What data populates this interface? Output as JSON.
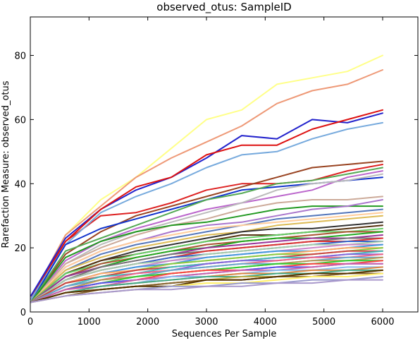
{
  "chart_data": {
    "type": "line",
    "title": "observed_otus: SampleID",
    "xlabel": "Sequences Per Sample",
    "ylabel": "Rarefaction Measure: observed_otus",
    "xlim": [
      0,
      6600
    ],
    "ylim": [
      0,
      92
    ],
    "xticks": [
      0,
      1000,
      2000,
      3000,
      4000,
      5000,
      6000
    ],
    "yticks": [
      0,
      20,
      40,
      60,
      80
    ],
    "grid": false,
    "legend": "none",
    "x": [
      10,
      600,
      1200,
      1800,
      2400,
      3000,
      3600,
      4200,
      4800,
      5400,
      6000
    ],
    "series": [
      {
        "color": "#ffff88",
        "values": [
          4,
          24,
          35,
          42,
          51,
          60,
          63,
          71,
          73,
          75,
          80
        ]
      },
      {
        "color": "#ee9977",
        "values": [
          4,
          24,
          33,
          42,
          48,
          53,
          58,
          65,
          69,
          71,
          75.5
        ]
      },
      {
        "color": "#dd2222",
        "values": [
          5,
          22,
          30,
          31,
          34,
          38,
          40,
          40,
          41,
          44,
          46
        ]
      },
      {
        "color": "#2222cc",
        "values": [
          5,
          23,
          32,
          38,
          42,
          48,
          55,
          54,
          60,
          59,
          62
        ]
      },
      {
        "color": "#dd1111",
        "values": [
          4,
          22,
          32,
          39,
          42,
          49,
          52,
          52,
          57,
          60,
          63
        ]
      },
      {
        "color": "#77aadd",
        "values": [
          4,
          21,
          31,
          36,
          40,
          45,
          49,
          50,
          54,
          57,
          59
        ]
      },
      {
        "color": "#994422",
        "values": [
          3,
          18,
          25,
          30,
          33,
          36,
          39,
          42,
          45,
          46,
          47
        ]
      },
      {
        "color": "#1133cc",
        "values": [
          3,
          21,
          26,
          29,
          32,
          35,
          38,
          39,
          40,
          41,
          42
        ]
      },
      {
        "color": "#55aa55",
        "values": [
          3,
          19,
          23,
          27,
          31,
          35,
          37,
          40,
          41,
          43,
          45
        ]
      },
      {
        "color": "#bb66cc",
        "values": [
          3,
          16,
          22,
          26,
          29,
          32,
          34,
          36,
          38,
          42,
          44
        ]
      },
      {
        "color": "#bbbbbb",
        "values": [
          3,
          15,
          21,
          25,
          28,
          31,
          34,
          38,
          40,
          41,
          43
        ]
      },
      {
        "color": "#ccaa99",
        "values": [
          3,
          15,
          20,
          24,
          27,
          29,
          32,
          34,
          35,
          35,
          36
        ]
      },
      {
        "color": "#229922",
        "values": [
          3,
          17,
          22,
          25,
          27,
          28,
          30,
          32,
          33,
          33,
          33
        ]
      },
      {
        "color": "#aa77cc",
        "values": [
          3,
          14,
          19,
          22,
          25,
          27,
          28,
          30,
          32,
          33,
          35
        ]
      },
      {
        "color": "#5577bb",
        "values": [
          3,
          13,
          18,
          21,
          23,
          25,
          27,
          29,
          30,
          31,
          32
        ]
      },
      {
        "color": "#ffcc99",
        "values": [
          3,
          14,
          19,
          22,
          24,
          26,
          27,
          28,
          29,
          30,
          31
        ]
      },
      {
        "color": "#ddbb55",
        "values": [
          3,
          13,
          17,
          20,
          22,
          24,
          25,
          27,
          28,
          29,
          30
        ]
      },
      {
        "color": "#333333",
        "values": [
          3,
          12,
          16,
          19,
          21,
          23,
          25,
          26,
          26,
          27,
          28
        ]
      },
      {
        "color": "#553311",
        "values": [
          3,
          12,
          16,
          18,
          20,
          22,
          24,
          24,
          25,
          26,
          27
        ]
      },
      {
        "color": "#66cc66",
        "values": [
          3,
          12,
          15,
          18,
          20,
          22,
          23,
          24,
          25,
          25,
          26
        ]
      },
      {
        "color": "#aa5533",
        "values": [
          3,
          11,
          15,
          17,
          19,
          21,
          22,
          23,
          24,
          25,
          25
        ]
      },
      {
        "color": "#22aa22",
        "values": [
          3,
          11,
          14,
          17,
          19,
          20,
          22,
          23,
          23,
          24,
          25
        ]
      },
      {
        "color": "#993399",
        "values": [
          3,
          11,
          14,
          16,
          18,
          20,
          21,
          22,
          23,
          23,
          24
        ]
      },
      {
        "color": "#777777",
        "values": [
          3,
          10,
          14,
          16,
          18,
          19,
          20,
          21,
          22,
          23,
          23
        ]
      },
      {
        "color": "#dd3333",
        "values": [
          3,
          10,
          13,
          15,
          17,
          19,
          20,
          21,
          22,
          22,
          23
        ]
      },
      {
        "color": "#3366cc",
        "values": [
          3,
          10,
          13,
          15,
          17,
          18,
          19,
          20,
          21,
          22,
          22
        ]
      },
      {
        "color": "#aaccaa",
        "values": [
          3,
          10,
          13,
          15,
          16,
          18,
          19,
          20,
          21,
          21,
          22
        ]
      },
      {
        "color": "#cc88cc",
        "values": [
          3,
          9,
          12,
          14,
          16,
          17,
          18,
          19,
          20,
          21,
          21
        ]
      },
      {
        "color": "#4499dd",
        "values": [
          3,
          9,
          12,
          14,
          15,
          17,
          18,
          19,
          19,
          20,
          21
        ]
      },
      {
        "color": "#ffaa66",
        "values": [
          3,
          9,
          12,
          13,
          15,
          16,
          17,
          18,
          19,
          20,
          20
        ]
      },
      {
        "color": "#88cc44",
        "values": [
          3,
          9,
          11,
          13,
          15,
          16,
          17,
          18,
          18,
          19,
          20
        ]
      },
      {
        "color": "#cc4444",
        "values": [
          3,
          9,
          11,
          13,
          14,
          15,
          16,
          17,
          18,
          19,
          19
        ]
      },
      {
        "color": "#44bbbb",
        "values": [
          3,
          8,
          11,
          12,
          14,
          15,
          16,
          17,
          17,
          18,
          19
        ]
      },
      {
        "color": "#8866dd",
        "values": [
          3,
          8,
          10,
          12,
          13,
          15,
          16,
          16,
          17,
          18,
          18
        ]
      },
      {
        "color": "#ee6688",
        "values": [
          3,
          8,
          10,
          12,
          13,
          14,
          15,
          16,
          17,
          17,
          18
        ]
      },
      {
        "color": "#66aacc",
        "values": [
          3,
          8,
          10,
          11,
          13,
          14,
          15,
          15,
          16,
          17,
          17
        ]
      },
      {
        "color": "#bb9955",
        "values": [
          3,
          7,
          10,
          11,
          12,
          13,
          14,
          15,
          16,
          16,
          17
        ]
      },
      {
        "color": "#33cc33",
        "values": [
          3,
          7,
          9,
          11,
          12,
          13,
          14,
          15,
          15,
          16,
          16
        ]
      },
      {
        "color": "#ff4444",
        "values": [
          3,
          7,
          9,
          10,
          12,
          13,
          13,
          14,
          15,
          15,
          16
        ]
      },
      {
        "color": "#5555ee",
        "values": [
          3,
          7,
          9,
          10,
          11,
          12,
          13,
          14,
          14,
          15,
          15
        ]
      },
      {
        "color": "#cc66aa",
        "values": [
          3,
          7,
          8,
          10,
          11,
          12,
          13,
          13,
          14,
          15,
          15
        ]
      },
      {
        "color": "#88bbee",
        "values": [
          3,
          6,
          8,
          9,
          11,
          11,
          12,
          13,
          13,
          14,
          14
        ]
      },
      {
        "color": "#dd8844",
        "values": [
          3,
          6,
          8,
          9,
          10,
          11,
          12,
          12,
          13,
          13,
          14
        ]
      },
      {
        "color": "#44aa88",
        "values": [
          3,
          6,
          8,
          9,
          10,
          11,
          11,
          12,
          12,
          13,
          13
        ]
      },
      {
        "color": "#bbaa44",
        "values": [
          3,
          6,
          7,
          8,
          9,
          10,
          11,
          11,
          12,
          12,
          13
        ]
      },
      {
        "color": "#aa7744",
        "values": [
          3,
          6,
          7,
          8,
          9,
          10,
          10,
          11,
          11,
          12,
          12
        ]
      },
      {
        "color": "#886633",
        "values": [
          3,
          5,
          7,
          8,
          9,
          10,
          10,
          11,
          11,
          12,
          12
        ]
      },
      {
        "color": "#553300",
        "values": [
          3,
          6,
          7,
          8,
          8,
          10,
          10,
          11,
          12,
          12,
          13
        ]
      },
      {
        "color": "#ffee66",
        "values": [
          3,
          5,
          6,
          7,
          8,
          9,
          9,
          10,
          11,
          11,
          12
        ]
      },
      {
        "color": "#9999cc",
        "values": [
          3,
          5,
          6,
          7,
          8,
          8,
          9,
          9,
          10,
          10,
          11
        ]
      },
      {
        "color": "#aa99cc",
        "values": [
          3,
          5,
          6,
          7,
          7,
          8,
          8,
          9,
          9,
          10,
          10
        ]
      }
    ]
  }
}
